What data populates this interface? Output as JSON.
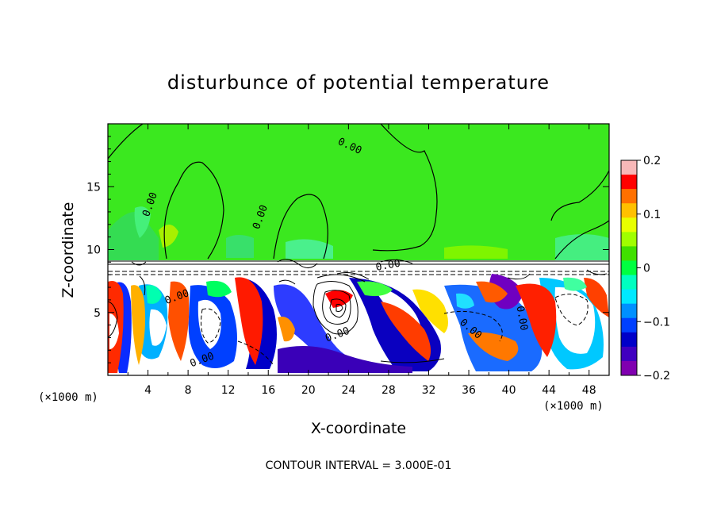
{
  "chart_data": {
    "type": "heatmap",
    "title": "disturbunce of potential temperature",
    "xlabel": "X-coordinate",
    "ylabel": "Z-coordinate",
    "x_unit": "(×1000 m)",
    "y_unit": "(×1000 m)",
    "xlim": [
      0,
      50
    ],
    "ylim": [
      0,
      20
    ],
    "x_ticks": [
      4,
      8,
      12,
      16,
      20,
      24,
      28,
      32,
      36,
      40,
      44,
      48
    ],
    "y_ticks": [
      5,
      10,
      15
    ],
    "colorbar": {
      "range": [
        -0.2,
        0.2
      ],
      "tick_labels": [
        "0.2",
        "0.1",
        "0",
        "−0.1",
        "−0.2"
      ],
      "tick_values": [
        0.2,
        0.1,
        0,
        -0.1,
        -0.2
      ],
      "colors": [
        "#f8b8b8",
        "#ff0000",
        "#ff7000",
        "#ffc000",
        "#e8ff00",
        "#a0ff00",
        "#40e000",
        "#00ff40",
        "#00ffc0",
        "#00e8ff",
        "#0090ff",
        "#0040ff",
        "#0000c8",
        "#4000c0",
        "#8000b0"
      ]
    },
    "contour_interval_text": "CONTOUR INTERVAL = 3.000E-01",
    "contour_labels": [
      {
        "text": "0.00",
        "x": 24,
        "z": 18
      },
      {
        "text": "0.00",
        "x": 4.5,
        "z": 13.5
      },
      {
        "text": "0.00",
        "x": 15.5,
        "z": 12.5
      },
      {
        "text": "0.00",
        "x": 7,
        "z": 6
      },
      {
        "text": "0.00",
        "x": 9.5,
        "z": 1
      },
      {
        "text": "0.00",
        "x": 23,
        "z": 3
      },
      {
        "text": "0.00",
        "x": 28,
        "z": 8.5
      },
      {
        "text": "0.00",
        "x": 36,
        "z": 3.5
      },
      {
        "text": "0.00",
        "x": 41,
        "z": 4.5
      }
    ],
    "background_value": 0,
    "grid": false
  }
}
